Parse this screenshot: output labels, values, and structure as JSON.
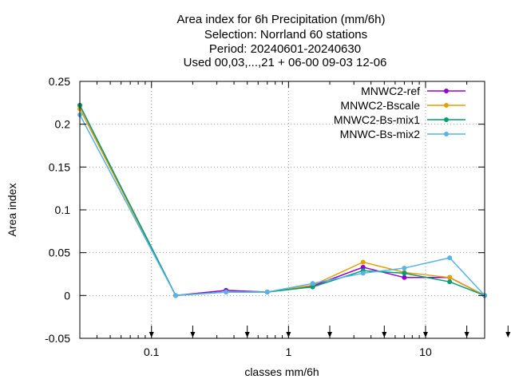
{
  "chart_data": {
    "type": "line",
    "title_lines": [
      "Area index  for 6h Precipitation (mm/6h)",
      "Selection: Norrland     60 stations",
      "Period: 20240601-20240630",
      "Used 00,03,...,21 + 06-00 09-03 12-06"
    ],
    "xlabel": "classes mm/6h",
    "ylabel": "Area index",
    "x_scale": "log",
    "xlim": [
      0.03,
      27
    ],
    "ylim": [
      -0.05,
      0.25
    ],
    "x_ticks": [
      0.1,
      1,
      10
    ],
    "x_tick_labels": [
      "0.1",
      "1",
      "10"
    ],
    "y_ticks": [
      -0.05,
      0,
      0.05,
      0.1,
      0.15,
      0.2,
      0.25
    ],
    "y_tick_labels": [
      "-0.05",
      "0",
      "0.05",
      "0.1",
      "0.15",
      "0.2",
      "0.25"
    ],
    "threshold_arrows": [
      0.1,
      0.2,
      0.5,
      1,
      2,
      5,
      10,
      20,
      40
    ],
    "grid": true,
    "legend_position": "top-right",
    "x": [
      0.03,
      0.15,
      0.35,
      0.7,
      1.5,
      3.5,
      7,
      15,
      27
    ],
    "series": [
      {
        "name": "MNWC2-ref",
        "color": "#9400d3",
        "values": [
          0.222,
          0.0,
          0.006,
          0.004,
          0.011,
          0.033,
          0.021,
          0.021,
          0.0
        ]
      },
      {
        "name": "MNWC2-Bscale",
        "color": "#e69f00",
        "values": [
          0.218,
          0.0,
          0.004,
          0.004,
          0.012,
          0.039,
          0.027,
          0.021,
          0.0
        ]
      },
      {
        "name": "MNWC2-Bs-mix1",
        "color": "#009e73",
        "values": [
          0.222,
          0.0,
          0.004,
          0.004,
          0.01,
          0.029,
          0.026,
          0.016,
          0.0
        ]
      },
      {
        "name": "MNWC-Bs-mix2",
        "color": "#56b4e9",
        "values": [
          0.211,
          0.0,
          0.004,
          0.004,
          0.014,
          0.026,
          0.032,
          0.044,
          0.0
        ]
      }
    ]
  }
}
